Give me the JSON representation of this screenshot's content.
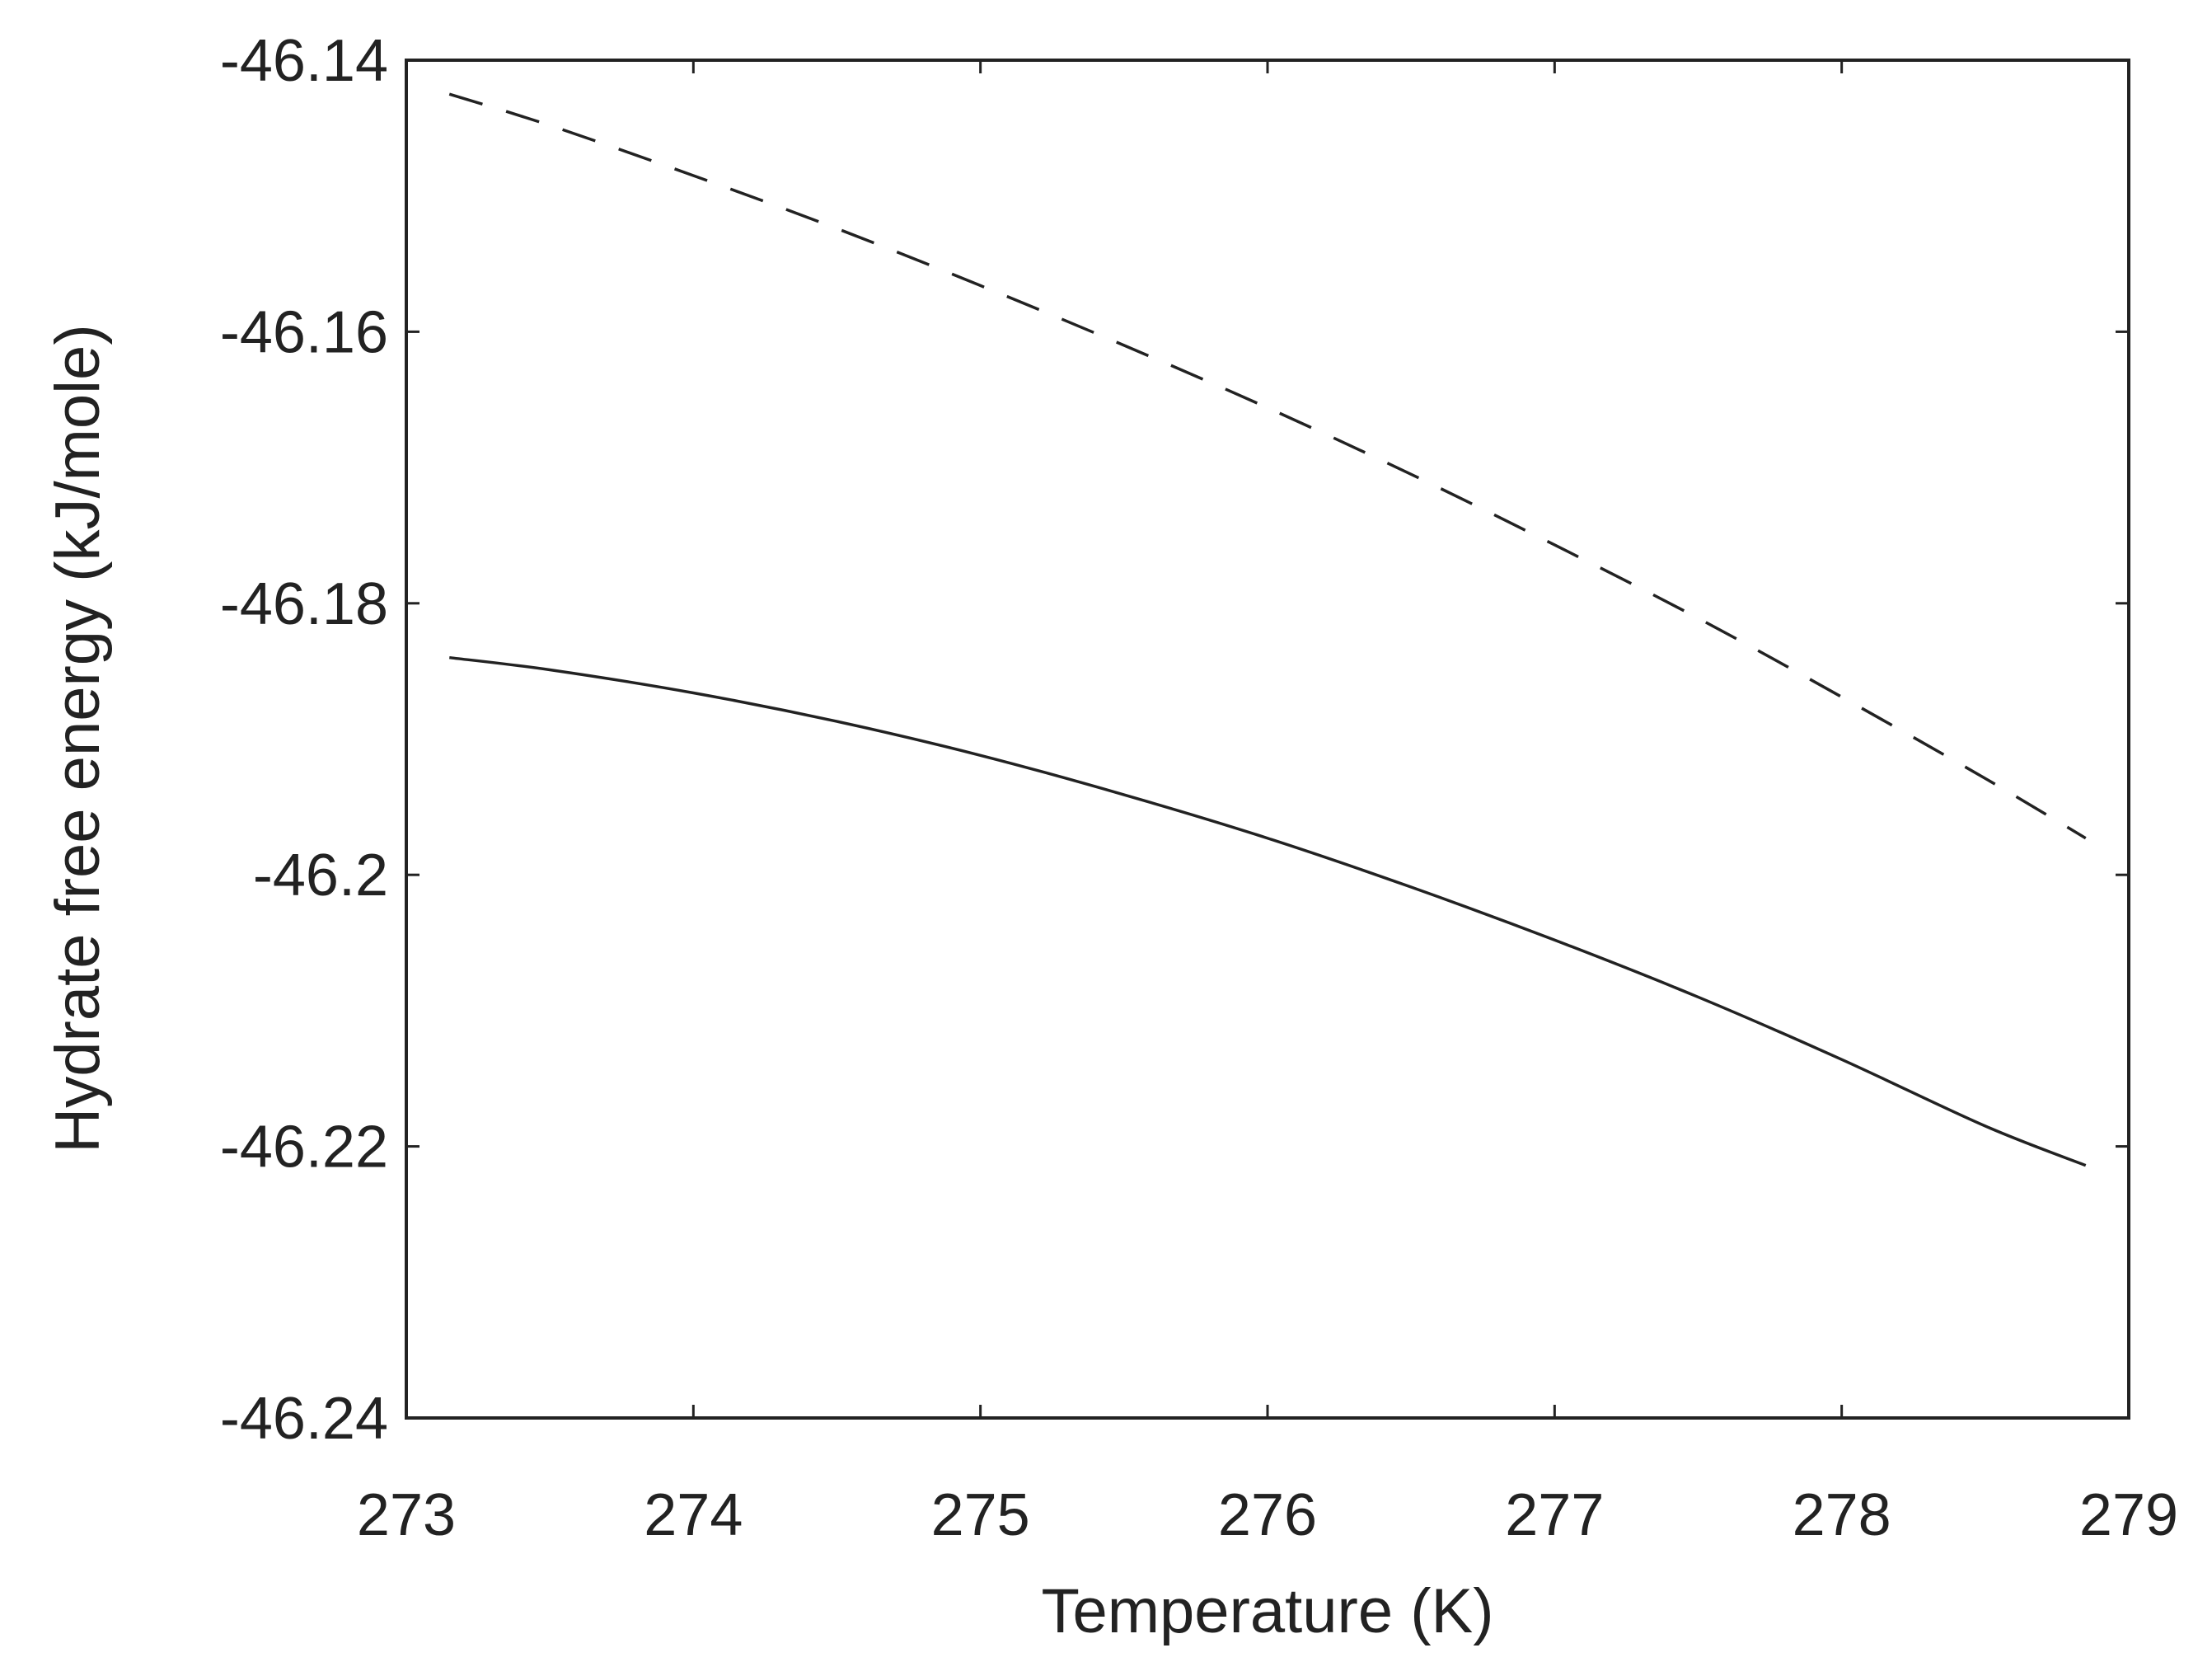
{
  "chart_data": {
    "type": "line",
    "xlabel": "Temperature (K)",
    "ylabel": "Hydrate free energy (kJ/mole)",
    "xlim": [
      273,
      279
    ],
    "ylim": [
      -46.24,
      -46.14
    ],
    "xticks": [
      273,
      274,
      275,
      276,
      277,
      278,
      279
    ],
    "xtick_labels": [
      "273",
      "274",
      "275",
      "276",
      "277",
      "278",
      "279"
    ],
    "yticks": [
      -46.24,
      -46.22,
      -46.2,
      -46.18,
      -46.16,
      -46.14
    ],
    "ytick_labels": [
      "-46.24",
      "-46.22",
      "-46.2",
      "-46.18",
      "-46.16",
      "-46.14"
    ],
    "grid": false,
    "legend": "none",
    "series": [
      {
        "style": "dashed",
        "color": "#222222",
        "x": [
          273.15,
          273.5,
          274.0,
          274.5,
          275.0,
          275.5,
          276.0,
          276.5,
          277.0,
          277.5,
          278.0,
          278.5,
          278.85
        ],
        "y": [
          -46.1425,
          -46.1448,
          -46.1485,
          -46.1524,
          -46.1566,
          -46.161,
          -46.1656,
          -46.1705,
          -46.1757,
          -46.1811,
          -46.1869,
          -46.1929,
          -46.1973
        ]
      },
      {
        "style": "solid",
        "color": "#222222",
        "x": [
          273.15,
          273.5,
          274.0,
          274.5,
          275.0,
          275.5,
          276.0,
          276.5,
          277.0,
          277.5,
          278.0,
          278.5,
          278.85
        ],
        "y": [
          -46.184,
          -46.1849,
          -46.1866,
          -46.1887,
          -46.1912,
          -46.1941,
          -46.1973,
          -46.2009,
          -46.2048,
          -46.209,
          -46.2136,
          -46.2185,
          -46.2214
        ]
      }
    ]
  }
}
